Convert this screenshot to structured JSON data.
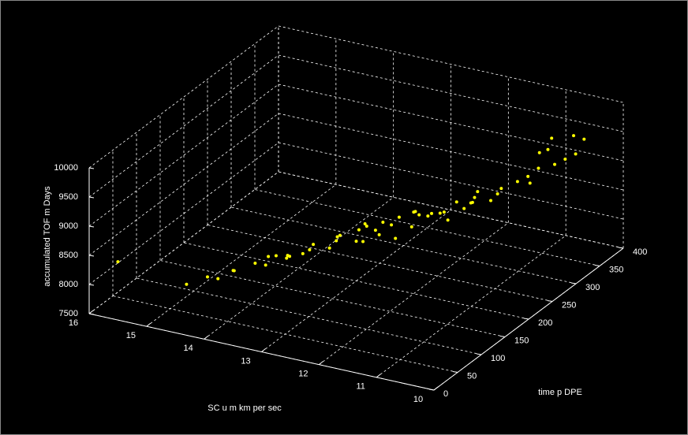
{
  "chart_data": {
    "type": "scatter3d",
    "xlabel": "SC u m  km per sec",
    "ylabel": "time p  DPE",
    "zlabel": "accumulated TOF m  Days",
    "color": "#ffff00",
    "grid": true,
    "xlim": [
      10,
      16
    ],
    "xticks": [
      10,
      11,
      12,
      13,
      14,
      15,
      16
    ],
    "ylim": [
      0,
      400
    ],
    "yticks": [
      0,
      50,
      100,
      150,
      200,
      250,
      300,
      350,
      400
    ],
    "zlim": [
      7500,
      10000
    ],
    "zticks": [
      7500,
      8000,
      8500,
      9000,
      9500,
      10000
    ],
    "x": [
      15.5,
      14.8,
      14.6,
      14.5,
      14.3,
      14.4,
      14.1,
      14.0,
      13.9,
      13.8,
      13.7,
      13.6,
      13.5,
      13.4,
      13.3,
      13.2,
      13.1,
      13.0,
      12.9,
      12.8,
      12.7,
      12.6,
      12.5,
      12.4,
      12.3,
      12.2,
      12.1,
      12.0,
      11.9,
      11.8,
      11.7,
      11.6,
      11.5,
      11.4,
      11.3,
      11.2,
      11.1,
      11.0,
      10.9,
      10.8,
      10.7,
      10.6,
      10.5,
      10.9,
      11.0,
      10.7,
      12.5,
      13.0,
      12.0,
      11.5,
      13.5,
      12.8,
      12.2,
      11.8,
      13.2,
      14.2,
      12.6,
      11.3,
      10.8,
      10.6,
      12.4
    ],
    "y": [
      0,
      60,
      80,
      90,
      100,
      110,
      120,
      130,
      140,
      150,
      140,
      160,
      170,
      150,
      180,
      190,
      170,
      200,
      210,
      190,
      220,
      200,
      230,
      210,
      240,
      220,
      250,
      230,
      260,
      240,
      270,
      280,
      260,
      290,
      300,
      280,
      310,
      320,
      330,
      300,
      340,
      350,
      360,
      350,
      370,
      380,
      180,
      160,
      200,
      230,
      120,
      250,
      280,
      300,
      230,
      160,
      170,
      250,
      320,
      390,
      260
    ],
    "z": [
      8500,
      7900,
      7950,
      7880,
      8000,
      7920,
      8050,
      7980,
      8100,
      8020,
      8150,
      8080,
      8200,
      8250,
      8120,
      8300,
      8350,
      8180,
      8400,
      8280,
      8450,
      8380,
      8520,
      8300,
      8600,
      8480,
      8550,
      8650,
      8420,
      8700,
      8600,
      8750,
      8800,
      8680,
      8850,
      8900,
      8950,
      9000,
      9100,
      9050,
      9150,
      9200,
      9250,
      9300,
      9350,
      9400,
      8600,
      8500,
      8900,
      9000,
      8300,
      8200,
      8350,
      8500,
      8150,
      7900,
      8750,
      9100,
      9450,
      9300,
      8400
    ]
  }
}
